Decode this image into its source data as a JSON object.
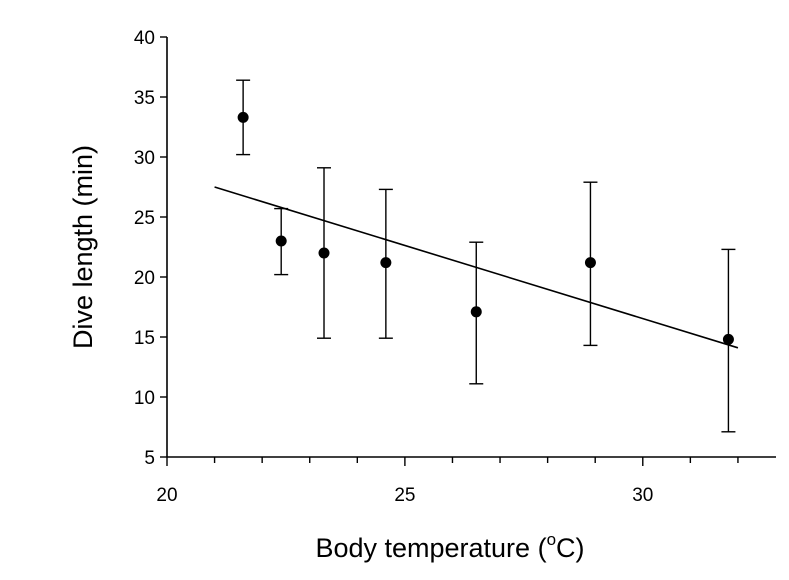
{
  "chart_data": {
    "type": "scatter",
    "title": "",
    "xlabel": "Body temperature (",
    "xlabel_sup": "o",
    "xlabel_end": "C)",
    "ylabel": "Dive length (min)",
    "xlim": [
      20,
      32.8
    ],
    "ylim": [
      5,
      40
    ],
    "x_ticks": [
      20,
      25,
      30
    ],
    "x_minor_ticks": [
      21,
      22,
      23,
      24,
      26,
      27,
      28,
      29,
      31,
      32
    ],
    "y_ticks": [
      5,
      10,
      15,
      20,
      25,
      30,
      35,
      40
    ],
    "grid": false,
    "legend": "none",
    "points": [
      {
        "x": 21.6,
        "y": 33.3,
        "err_low": 30.2,
        "err_high": 36.4
      },
      {
        "x": 22.4,
        "y": 23.0,
        "err_low": 20.2,
        "err_high": 25.7
      },
      {
        "x": 23.3,
        "y": 22.0,
        "err_low": 14.9,
        "err_high": 29.1
      },
      {
        "x": 24.6,
        "y": 21.2,
        "err_low": 14.9,
        "err_high": 27.3
      },
      {
        "x": 26.5,
        "y": 17.1,
        "err_low": 11.1,
        "err_high": 22.9
      },
      {
        "x": 28.9,
        "y": 21.2,
        "err_low": 14.3,
        "err_high": 27.9
      },
      {
        "x": 31.8,
        "y": 14.8,
        "err_low": 7.1,
        "err_high": 22.3
      }
    ],
    "trendline": {
      "x": [
        21.0,
        32.0
      ],
      "y": [
        27.5,
        14.1
      ]
    }
  }
}
